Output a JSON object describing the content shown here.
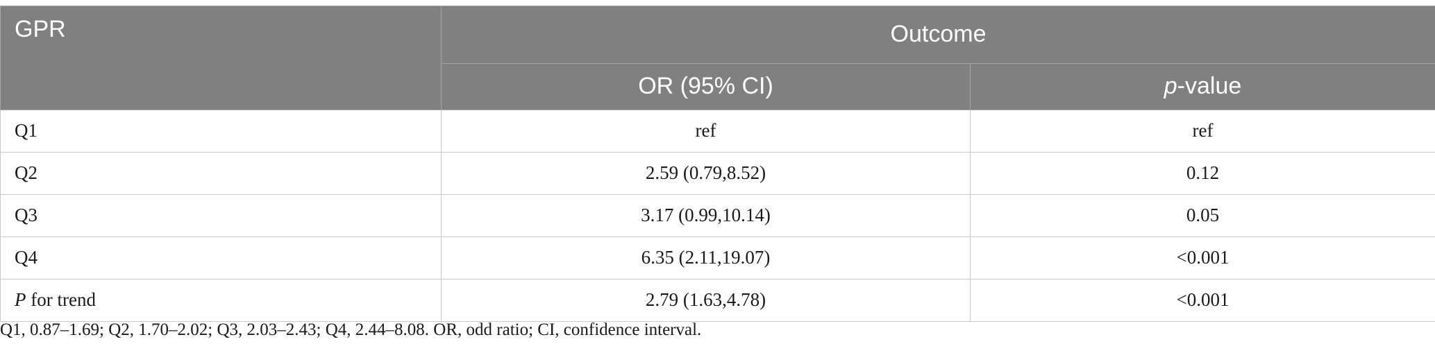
{
  "table": {
    "header": {
      "row_label": "GPR",
      "group": "Outcome",
      "col_or": "OR (95% CI)",
      "col_p_italic": "p",
      "col_p_rest": "-value"
    },
    "rows": [
      {
        "label": "Q1",
        "or": "ref",
        "p": "ref"
      },
      {
        "label": "Q2",
        "or": "2.59 (0.79,8.52)",
        "p": "0.12"
      },
      {
        "label": "Q3",
        "or": "3.17 (0.99,10.14)",
        "p": "0.05"
      },
      {
        "label": "Q4",
        "or": "6.35 (2.11,19.07)",
        "p": "<0.001"
      }
    ],
    "trend": {
      "label_italic": "P",
      "label_rest": " for trend",
      "or": "2.79 (1.63,4.78)",
      "p": "<0.001"
    }
  },
  "footnote": "Q1, 0.87–1.69; Q2, 1.70–2.02; Q3, 2.03–2.43; Q4, 2.44–8.08. OR, odd ratio; CI, confidence interval."
}
